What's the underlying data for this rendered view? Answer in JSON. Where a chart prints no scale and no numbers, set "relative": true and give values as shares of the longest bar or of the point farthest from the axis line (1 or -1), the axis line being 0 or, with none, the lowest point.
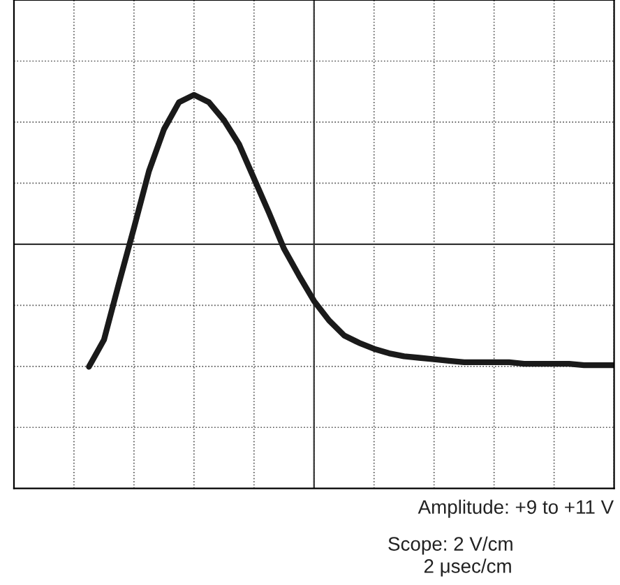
{
  "chart_data": {
    "type": "line",
    "relative": true,
    "grid": true,
    "color": "#1a1a1a",
    "line_style": "solid",
    "marker": "none",
    "categories": [
      null,
      null,
      null,
      null,
      null,
      null,
      null,
      null,
      null,
      null,
      null,
      null,
      null,
      null,
      null,
      null,
      null,
      null,
      null,
      null,
      null,
      null,
      null,
      null,
      null,
      null,
      null,
      null,
      null,
      null,
      null,
      null,
      null,
      null,
      null,
      null,
      null,
      null,
      null,
      null,
      null
    ],
    "values": [
      null,
      null,
      null,
      null,
      null,
      -0.82,
      -0.64,
      -0.26,
      0.11,
      0.49,
      0.77,
      0.95,
      1.0,
      0.95,
      0.83,
      0.67,
      0.44,
      0.21,
      -0.03,
      -0.21,
      -0.38,
      -0.51,
      -0.61,
      -0.66,
      -0.7,
      -0.73,
      -0.75,
      -0.76,
      -0.77,
      -0.78,
      -0.79,
      -0.79,
      -0.79,
      -0.79,
      -0.8,
      -0.8,
      -0.8,
      -0.8,
      -0.81,
      -0.81,
      -0.81
    ],
    "annotations": [
      "Amplitude: +9 to +11 V",
      "Scope: 2 V/cm",
      "2 μsec/cm"
    ]
  }
}
